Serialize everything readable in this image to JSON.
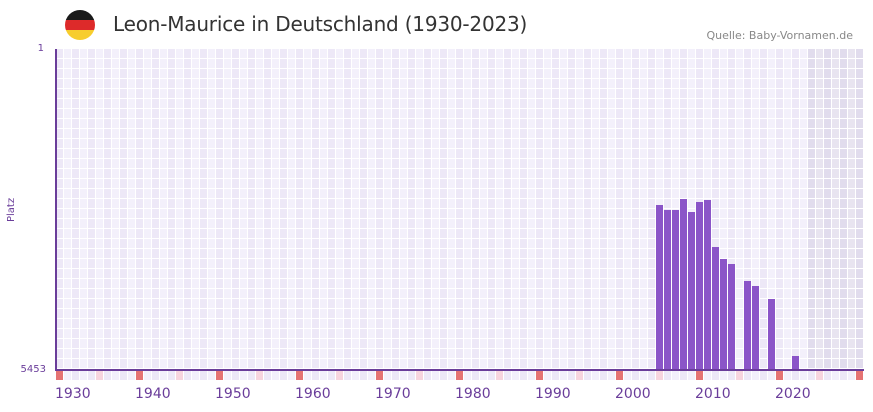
{
  "header": {
    "title": "Leon-Maurice in Deutschland (1930-2023)",
    "source": "Quelle: Baby-Vornamen.de",
    "flag_icon": "germany-flag-icon",
    "flag_colors": [
      "#1a1a1a",
      "#dd2a2a",
      "#f7cd2e"
    ]
  },
  "colors": {
    "bar": "#8b55c8",
    "axis": "#6a3d9a",
    "cell_a": "#ede8f7",
    "cell_b": "#f3f0fb",
    "future_a": "#e1dced",
    "future_b": "#e8e4f0",
    "decade_marker": "#e57373",
    "half_decade_marker": "#f7d4de"
  },
  "chart_data": {
    "type": "bar",
    "title": "Leon-Maurice in Deutschland (1930-2023)",
    "xlabel": "",
    "ylabel": "Platz",
    "y_axis_inverted": true,
    "ylim": [
      1,
      5453
    ],
    "xlim": [
      1930,
      2030
    ],
    "x_tick_labels": [
      "1930",
      "1940",
      "1950",
      "1960",
      "1970",
      "1980",
      "1990",
      "2000",
      "2010",
      "2020"
    ],
    "y_tick_labels": [
      "1",
      "5453"
    ],
    "grid": true,
    "categories": [
      2005,
      2006,
      2007,
      2008,
      2009,
      2010,
      2011,
      2012,
      2013,
      2014,
      2016,
      2017,
      2019,
      2022
    ],
    "values": [
      2650,
      2735,
      2735,
      2548,
      2770,
      2600,
      2565,
      3363,
      3567,
      3652,
      3940,
      4025,
      4246,
      5214
    ],
    "series": [
      {
        "name": "Platz",
        "values": [
          2650,
          2735,
          2735,
          2548,
          2770,
          2600,
          2565,
          3363,
          3567,
          3652,
          3940,
          4025,
          4246,
          5214
        ]
      }
    ],
    "shaded_future_from": 2024
  }
}
